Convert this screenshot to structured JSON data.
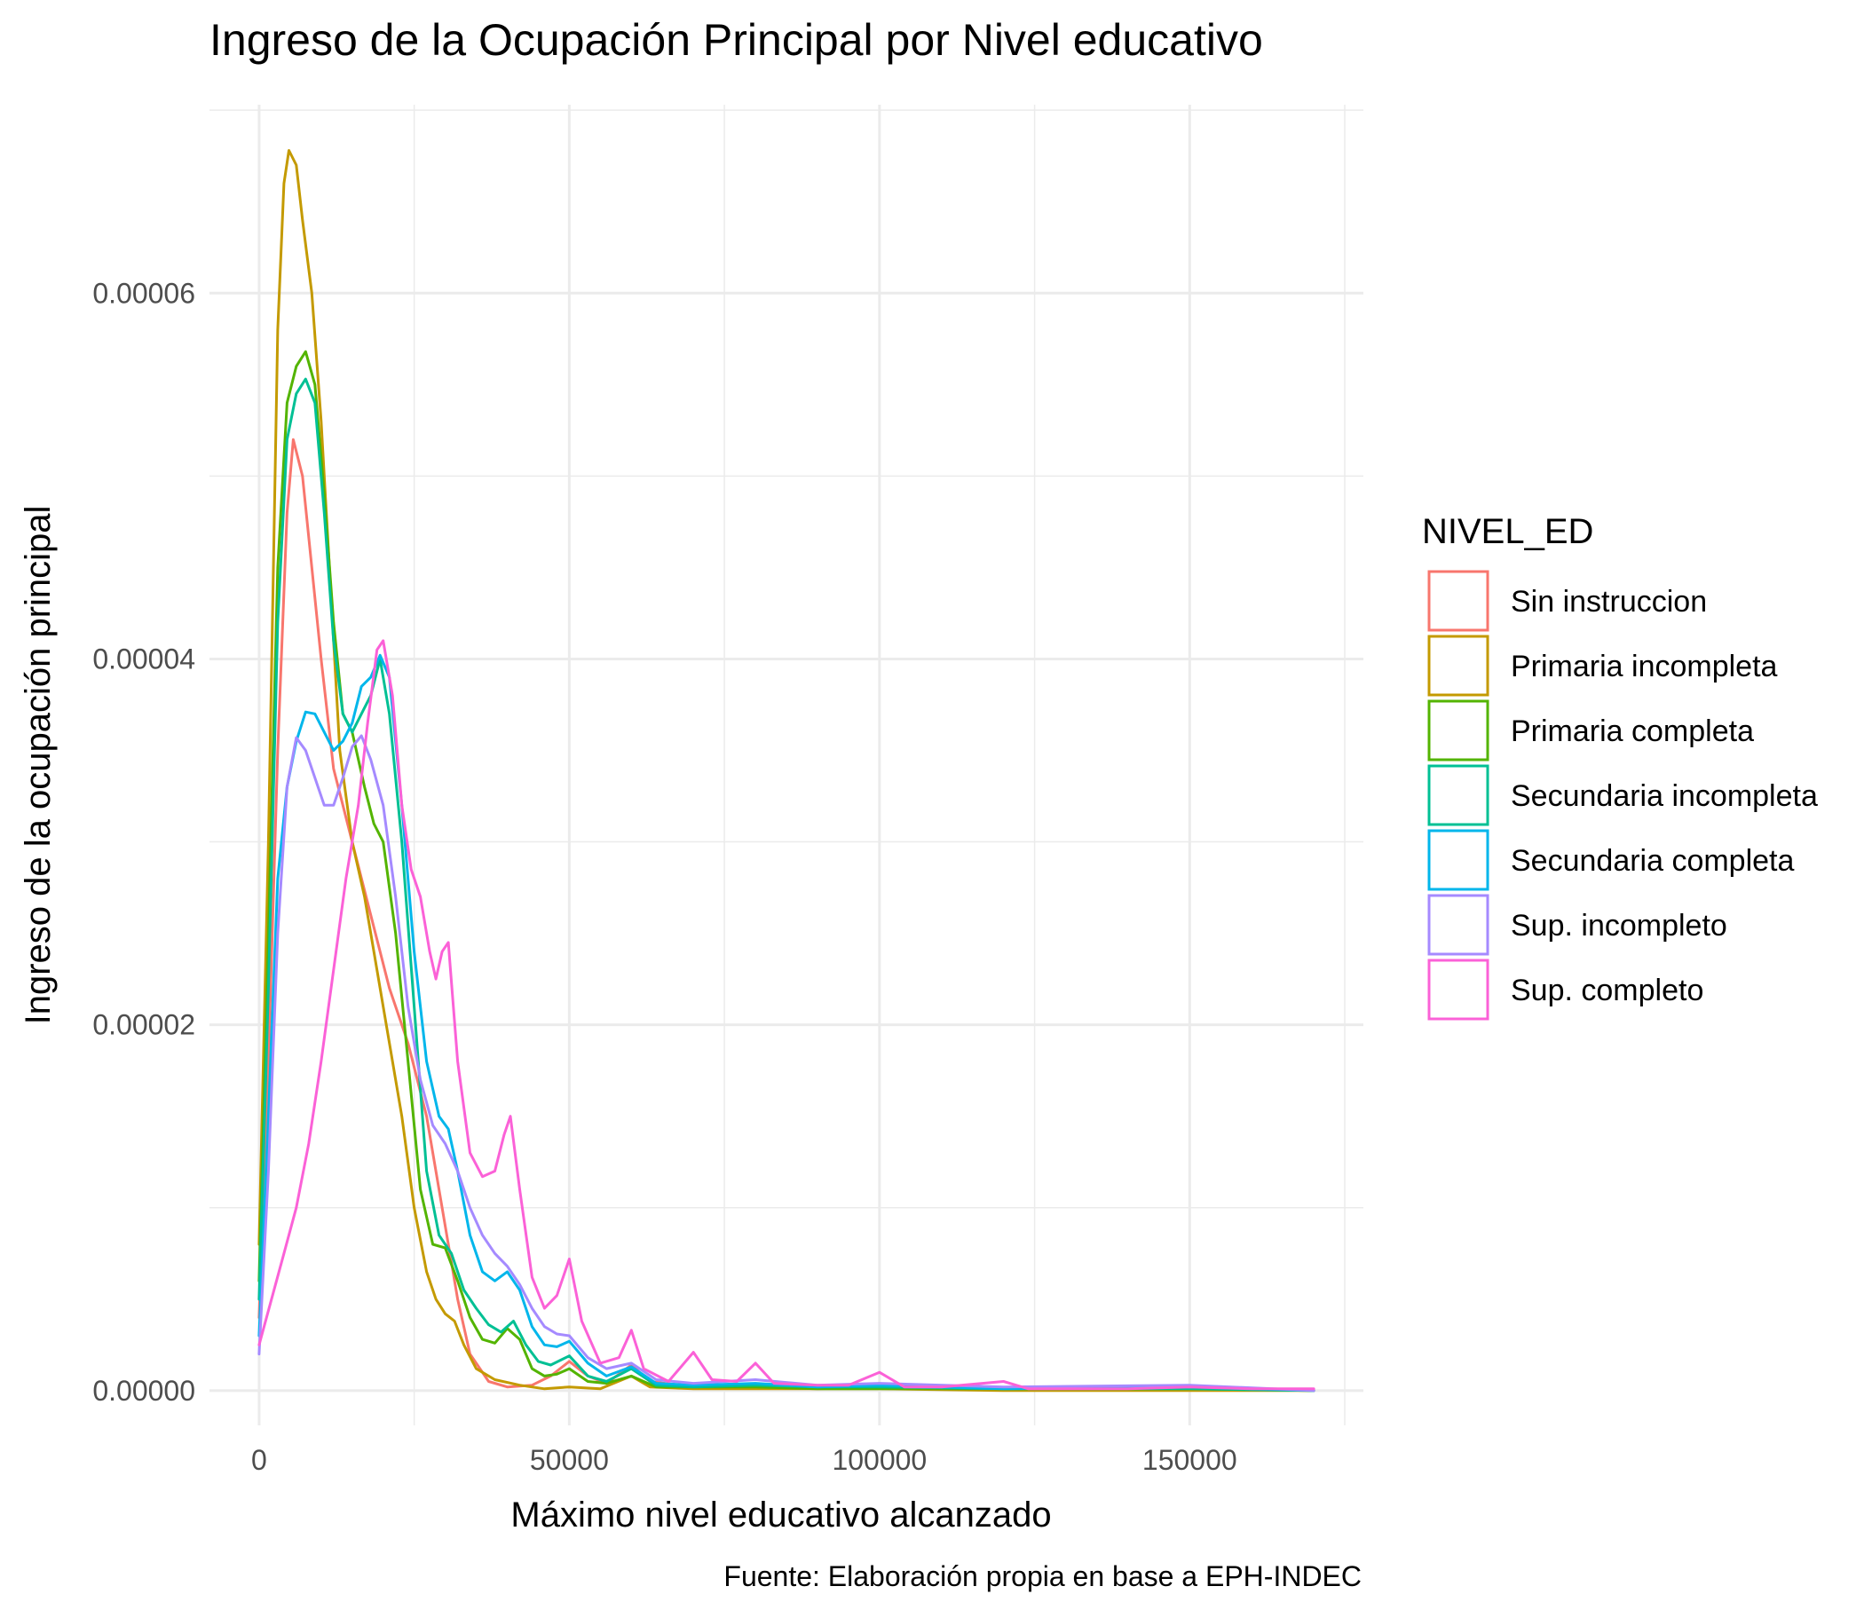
{
  "chart_data": {
    "type": "line",
    "title": "Ingreso de la Ocupación Principal por Nivel educativo",
    "xlabel": "Máximo nivel educativo alcanzado",
    "ylabel": "Ingreso de la ocupación principal",
    "caption": "Fuente: Elaboración propia en base a EPH-INDEC",
    "xlim": [
      -8000,
      178000
    ],
    "ylim": [
      -1.9e-06,
      7.03e-05
    ],
    "x_ticks": [
      0,
      50000,
      100000,
      150000
    ],
    "x_tick_labels": [
      "0",
      "50000",
      "100000",
      "150000"
    ],
    "y_ticks": [
      0,
      2e-05,
      4e-05,
      6e-05
    ],
    "y_tick_labels": [
      "0.00000",
      "0.00002",
      "0.00004",
      "0.00006"
    ],
    "grid": true,
    "legend": {
      "title": "NIVEL_ED",
      "position": "right"
    },
    "series": [
      {
        "name": "Sin instruccion",
        "color": "#F8766D",
        "points": [
          [
            0,
            4e-06
          ],
          [
            1500,
            1.8e-05
          ],
          [
            3000,
            3.5e-05
          ],
          [
            4500,
            4.8e-05
          ],
          [
            5500,
            5.2e-05
          ],
          [
            7000,
            5e-05
          ],
          [
            8500,
            4.5e-05
          ],
          [
            10000,
            4e-05
          ],
          [
            12000,
            3.4e-05
          ],
          [
            15000,
            3e-05
          ],
          [
            18000,
            2.6e-05
          ],
          [
            21000,
            2.2e-05
          ],
          [
            24000,
            1.9e-05
          ],
          [
            27000,
            1.5e-05
          ],
          [
            30000,
            9e-06
          ],
          [
            32000,
            5e-06
          ],
          [
            34000,
            2e-06
          ],
          [
            37000,
            5e-07
          ],
          [
            40000,
            2e-07
          ],
          [
            44000,
            3e-07
          ],
          [
            47000,
            8e-07
          ],
          [
            50000,
            1.6e-06
          ],
          [
            53000,
            8e-07
          ],
          [
            56000,
            4e-07
          ],
          [
            60000,
            1.4e-06
          ],
          [
            63000,
            5e-07
          ],
          [
            70000,
            2e-07
          ],
          [
            80000,
            2e-07
          ],
          [
            90000,
            1e-07
          ],
          [
            100000,
            2e-07
          ],
          [
            120000,
            1e-07
          ],
          [
            150000,
            1e-07
          ],
          [
            170000,
            0
          ]
        ]
      },
      {
        "name": "Primaria incompleta",
        "color": "#C49A00",
        "points": [
          [
            0,
            8e-06
          ],
          [
            1500,
            3e-05
          ],
          [
            3000,
            5.8e-05
          ],
          [
            4000,
            6.6e-05
          ],
          [
            4800,
            6.78e-05
          ],
          [
            6000,
            6.7e-05
          ],
          [
            7000,
            6.4e-05
          ],
          [
            8500,
            6e-05
          ],
          [
            10000,
            5.3e-05
          ],
          [
            11500,
            4.4e-05
          ],
          [
            13000,
            3.5e-05
          ],
          [
            15000,
            3e-05
          ],
          [
            17000,
            2.7e-05
          ],
          [
            19000,
            2.3e-05
          ],
          [
            21000,
            1.9e-05
          ],
          [
            23000,
            1.5e-05
          ],
          [
            25000,
            1e-05
          ],
          [
            27000,
            6.5e-06
          ],
          [
            28500,
            5e-06
          ],
          [
            30000,
            4.2e-06
          ],
          [
            31500,
            3.8e-06
          ],
          [
            33000,
            2.5e-06
          ],
          [
            35000,
            1.2e-06
          ],
          [
            38000,
            6e-07
          ],
          [
            42000,
            3e-07
          ],
          [
            46000,
            1e-07
          ],
          [
            50000,
            2e-07
          ],
          [
            55000,
            1e-07
          ],
          [
            60000,
            8e-07
          ],
          [
            63000,
            2e-07
          ],
          [
            70000,
            1e-07
          ],
          [
            80000,
            1e-07
          ],
          [
            100000,
            1e-07
          ],
          [
            120000,
            0
          ],
          [
            170000,
            0
          ]
        ]
      },
      {
        "name": "Primaria completa",
        "color": "#53B400",
        "points": [
          [
            0,
            6e-06
          ],
          [
            1500,
            2.5e-05
          ],
          [
            3000,
            4.5e-05
          ],
          [
            4500,
            5.4e-05
          ],
          [
            6000,
            5.6e-05
          ],
          [
            7500,
            5.68e-05
          ],
          [
            9000,
            5.5e-05
          ],
          [
            10500,
            4.9e-05
          ],
          [
            12000,
            4.2e-05
          ],
          [
            13500,
            3.7e-05
          ],
          [
            15000,
            3.6e-05
          ],
          [
            17000,
            3.3e-05
          ],
          [
            18500,
            3.1e-05
          ],
          [
            20000,
            3e-05
          ],
          [
            22000,
            2.5e-05
          ],
          [
            24000,
            1.8e-05
          ],
          [
            26000,
            1.1e-05
          ],
          [
            28000,
            8e-06
          ],
          [
            30000,
            7.8e-06
          ],
          [
            32000,
            6e-06
          ],
          [
            34000,
            4e-06
          ],
          [
            36000,
            2.8e-06
          ],
          [
            38000,
            2.6e-06
          ],
          [
            40000,
            3.4e-06
          ],
          [
            42000,
            2.8e-06
          ],
          [
            44000,
            1.2e-06
          ],
          [
            46000,
            8e-07
          ],
          [
            48000,
            9e-07
          ],
          [
            50000,
            1.2e-06
          ],
          [
            53000,
            5e-07
          ],
          [
            56000,
            4e-07
          ],
          [
            60000,
            8e-07
          ],
          [
            64000,
            2e-07
          ],
          [
            70000,
            2e-07
          ],
          [
            80000,
            2e-07
          ],
          [
            90000,
            1e-07
          ],
          [
            100000,
            1e-07
          ],
          [
            120000,
            1e-07
          ],
          [
            150000,
            1e-07
          ],
          [
            170000,
            0
          ]
        ]
      },
      {
        "name": "Secundaria incompleta",
        "color": "#00C094",
        "points": [
          [
            0,
            5e-06
          ],
          [
            1500,
            2.2e-05
          ],
          [
            3000,
            4.2e-05
          ],
          [
            4500,
            5.2e-05
          ],
          [
            6000,
            5.45e-05
          ],
          [
            7500,
            5.53e-05
          ],
          [
            9000,
            5.4e-05
          ],
          [
            10500,
            4.8e-05
          ],
          [
            12000,
            4.1e-05
          ],
          [
            13500,
            3.7e-05
          ],
          [
            15000,
            3.6e-05
          ],
          [
            16500,
            3.7e-05
          ],
          [
            18000,
            3.8e-05
          ],
          [
            19500,
            4e-05
          ],
          [
            21000,
            3.7e-05
          ],
          [
            23000,
            3e-05
          ],
          [
            25000,
            2.1e-05
          ],
          [
            27000,
            1.2e-05
          ],
          [
            29000,
            8.5e-06
          ],
          [
            31000,
            7.5e-06
          ],
          [
            33000,
            5.5e-06
          ],
          [
            35000,
            4.5e-06
          ],
          [
            37000,
            3.6e-06
          ],
          [
            39000,
            3.2e-06
          ],
          [
            41000,
            3.8e-06
          ],
          [
            43000,
            2.5e-06
          ],
          [
            45000,
            1.6e-06
          ],
          [
            47000,
            1.4e-06
          ],
          [
            50000,
            1.9e-06
          ],
          [
            53000,
            8e-07
          ],
          [
            56000,
            5e-07
          ],
          [
            60000,
            1.2e-06
          ],
          [
            64000,
            3e-07
          ],
          [
            70000,
            2e-07
          ],
          [
            80000,
            3e-07
          ],
          [
            90000,
            2e-07
          ],
          [
            100000,
            2e-07
          ],
          [
            120000,
            1e-07
          ],
          [
            150000,
            1e-07
          ],
          [
            170000,
            0
          ]
        ]
      },
      {
        "name": "Secundaria completa",
        "color": "#00B6EB",
        "points": [
          [
            0,
            3e-06
          ],
          [
            1500,
            1.5e-05
          ],
          [
            3000,
            2.8e-05
          ],
          [
            4500,
            3.3e-05
          ],
          [
            6000,
            3.55e-05
          ],
          [
            7500,
            3.71e-05
          ],
          [
            9000,
            3.7e-05
          ],
          [
            10500,
            3.6e-05
          ],
          [
            12000,
            3.5e-05
          ],
          [
            13500,
            3.55e-05
          ],
          [
            15000,
            3.65e-05
          ],
          [
            16500,
            3.85e-05
          ],
          [
            18000,
            3.9e-05
          ],
          [
            19500,
            4.02e-05
          ],
          [
            21000,
            3.9e-05
          ],
          [
            23000,
            3.2e-05
          ],
          [
            25000,
            2.4e-05
          ],
          [
            27000,
            1.8e-05
          ],
          [
            29000,
            1.5e-05
          ],
          [
            30500,
            1.43e-05
          ],
          [
            32000,
            1.2e-05
          ],
          [
            34000,
            8.5e-06
          ],
          [
            36000,
            6.5e-06
          ],
          [
            38000,
            6e-06
          ],
          [
            40000,
            6.5e-06
          ],
          [
            42000,
            5.5e-06
          ],
          [
            44000,
            3.5e-06
          ],
          [
            46000,
            2.5e-06
          ],
          [
            48000,
            2.4e-06
          ],
          [
            50000,
            2.7e-06
          ],
          [
            53000,
            1.5e-06
          ],
          [
            56000,
            8e-07
          ],
          [
            60000,
            1.3e-06
          ],
          [
            64000,
            4e-07
          ],
          [
            70000,
            3e-07
          ],
          [
            80000,
            4e-07
          ],
          [
            90000,
            2e-07
          ],
          [
            100000,
            3e-07
          ],
          [
            120000,
            1e-07
          ],
          [
            150000,
            2e-07
          ],
          [
            170000,
            0
          ]
        ]
      },
      {
        "name": "Sup. incompleto",
        "color": "#A58AFF",
        "points": [
          [
            0,
            2e-06
          ],
          [
            1500,
            1.2e-05
          ],
          [
            3000,
            2.5e-05
          ],
          [
            4500,
            3.3e-05
          ],
          [
            6000,
            3.57e-05
          ],
          [
            7500,
            3.5e-05
          ],
          [
            9000,
            3.35e-05
          ],
          [
            10500,
            3.2e-05
          ],
          [
            12000,
            3.2e-05
          ],
          [
            13500,
            3.35e-05
          ],
          [
            15000,
            3.52e-05
          ],
          [
            16500,
            3.58e-05
          ],
          [
            18000,
            3.45e-05
          ],
          [
            20000,
            3.2e-05
          ],
          [
            22000,
            2.7e-05
          ],
          [
            24000,
            2.1e-05
          ],
          [
            26000,
            1.7e-05
          ],
          [
            28000,
            1.45e-05
          ],
          [
            30000,
            1.35e-05
          ],
          [
            32000,
            1.2e-05
          ],
          [
            34000,
            1e-05
          ],
          [
            36000,
            8.5e-06
          ],
          [
            38000,
            7.5e-06
          ],
          [
            40000,
            6.8e-06
          ],
          [
            42000,
            5.8e-06
          ],
          [
            44000,
            4.5e-06
          ],
          [
            46000,
            3.5e-06
          ],
          [
            48000,
            3.1e-06
          ],
          [
            50000,
            3e-06
          ],
          [
            53000,
            1.8e-06
          ],
          [
            56000,
            1.2e-06
          ],
          [
            60000,
            1.5e-06
          ],
          [
            64000,
            6e-07
          ],
          [
            70000,
            4e-07
          ],
          [
            80000,
            6e-07
          ],
          [
            90000,
            3e-07
          ],
          [
            100000,
            4e-07
          ],
          [
            120000,
            2e-07
          ],
          [
            150000,
            3e-07
          ],
          [
            170000,
            0
          ]
        ]
      },
      {
        "name": "Sup. completo",
        "color": "#FB61D7",
        "points": [
          [
            0,
            2.5e-06
          ],
          [
            2000,
            5e-06
          ],
          [
            4000,
            7.5e-06
          ],
          [
            6000,
            1e-05
          ],
          [
            8000,
            1.35e-05
          ],
          [
            10000,
            1.8e-05
          ],
          [
            12000,
            2.3e-05
          ],
          [
            14000,
            2.8e-05
          ],
          [
            16000,
            3.2e-05
          ],
          [
            17500,
            3.65e-05
          ],
          [
            19000,
            4.05e-05
          ],
          [
            20000,
            4.1e-05
          ],
          [
            21500,
            3.8e-05
          ],
          [
            23000,
            3.2e-05
          ],
          [
            24500,
            2.85e-05
          ],
          [
            26000,
            2.7e-05
          ],
          [
            27500,
            2.4e-05
          ],
          [
            28500,
            2.25e-05
          ],
          [
            29500,
            2.4e-05
          ],
          [
            30500,
            2.45e-05
          ],
          [
            32000,
            1.8e-05
          ],
          [
            34000,
            1.3e-05
          ],
          [
            36000,
            1.17e-05
          ],
          [
            38000,
            1.2e-05
          ],
          [
            39500,
            1.4e-05
          ],
          [
            40500,
            1.5e-05
          ],
          [
            42000,
            1.1e-05
          ],
          [
            44000,
            6.2e-06
          ],
          [
            46000,
            4.5e-06
          ],
          [
            48000,
            5.2e-06
          ],
          [
            50000,
            7.2e-06
          ],
          [
            52000,
            3.8e-06
          ],
          [
            55000,
            1.5e-06
          ],
          [
            58000,
            1.8e-06
          ],
          [
            60000,
            3.3e-06
          ],
          [
            62000,
            1.2e-06
          ],
          [
            66000,
            5e-07
          ],
          [
            70000,
            2.1e-06
          ],
          [
            73000,
            6e-07
          ],
          [
            77000,
            5e-07
          ],
          [
            80000,
            1.5e-06
          ],
          [
            83000,
            4e-07
          ],
          [
            90000,
            3e-07
          ],
          [
            95000,
            3e-07
          ],
          [
            100000,
            1e-06
          ],
          [
            104000,
            2e-07
          ],
          [
            110000,
            2e-07
          ],
          [
            120000,
            5e-07
          ],
          [
            124000,
            1e-07
          ],
          [
            140000,
            1e-07
          ],
          [
            150000,
            2e-07
          ],
          [
            160000,
            1e-07
          ],
          [
            170000,
            1e-07
          ]
        ]
      }
    ]
  }
}
